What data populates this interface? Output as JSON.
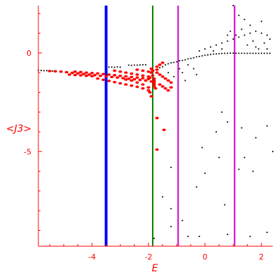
{
  "chart_data": {
    "type": "scatter",
    "xlabel": "E",
    "ylabel": "<J3>",
    "xlim": [
      -5.9,
      2.4
    ],
    "ylim": [
      -9.8,
      2.4
    ],
    "x_ticks": [
      -4,
      -2,
      0,
      2
    ],
    "y_ticks": [
      0,
      -5
    ],
    "grid": false,
    "colors": {
      "axes": "#ff0000",
      "black_series": "#000000",
      "red_series": "#ff0000"
    },
    "vertical_lines": [
      {
        "x": -3.5,
        "color": "#0000ff"
      },
      {
        "x": -1.85,
        "color": "#008000"
      },
      {
        "x": -0.95,
        "color": "#cc00cc"
      },
      {
        "x": 1.05,
        "color": "#cc00cc"
      }
    ],
    "series": [
      {
        "color": "#000000",
        "points": [
          [
            -5.9,
            -0.88
          ],
          [
            -5.8,
            -0.89
          ],
          [
            -5.7,
            -0.9
          ],
          [
            -5.6,
            -0.9
          ],
          [
            -5.5,
            -0.91
          ],
          [
            -5.4,
            -0.92
          ],
          [
            -3.4,
            -0.72
          ],
          [
            -3.3,
            -0.72
          ],
          [
            -3.2,
            -0.73
          ],
          [
            -3.1,
            -0.71
          ],
          [
            -3.0,
            -0.72
          ],
          [
            -2.7,
            -0.62
          ],
          [
            -2.6,
            -0.63
          ],
          [
            -2.5,
            -0.62
          ],
          [
            -2.4,
            -0.62
          ],
          [
            -2.3,
            -0.61
          ],
          [
            -2.2,
            -0.6
          ],
          [
            -2.1,
            -0.6
          ],
          [
            -1.6,
            -0.75
          ],
          [
            -1.5,
            -0.7
          ],
          [
            -1.4,
            -0.6
          ],
          [
            -1.3,
            -0.55
          ],
          [
            -1.2,
            -0.5
          ],
          [
            -1.1,
            -0.48
          ],
          [
            -1.0,
            -0.45
          ],
          [
            -0.9,
            -0.4
          ],
          [
            -0.8,
            -0.38
          ],
          [
            -0.7,
            -0.35
          ],
          [
            -0.6,
            -0.3
          ],
          [
            -0.5,
            -0.28
          ],
          [
            -0.4,
            -0.25
          ],
          [
            -0.3,
            -0.2
          ],
          [
            -0.2,
            -0.18
          ],
          [
            -0.1,
            -0.15
          ],
          [
            0.0,
            -0.12
          ],
          [
            0.1,
            -0.1
          ],
          [
            0.2,
            -0.08
          ],
          [
            0.3,
            -0.06
          ],
          [
            0.4,
            -0.05
          ],
          [
            0.5,
            -0.04
          ],
          [
            0.6,
            -0.03
          ],
          [
            0.7,
            -0.02
          ],
          [
            0.8,
            -0.02
          ],
          [
            0.9,
            -0.01
          ],
          [
            1.0,
            -0.01
          ],
          [
            1.1,
            -0.02
          ],
          [
            1.2,
            -0.02
          ],
          [
            1.3,
            -0.02
          ],
          [
            1.4,
            -0.02
          ],
          [
            1.5,
            -0.02
          ],
          [
            1.6,
            -0.02
          ],
          [
            1.7,
            -0.02
          ],
          [
            1.8,
            -0.02
          ],
          [
            1.9,
            -0.02
          ],
          [
            2.0,
            -0.02
          ],
          [
            2.1,
            -0.02
          ],
          [
            2.2,
            -0.02
          ],
          [
            2.3,
            -0.02
          ],
          [
            -0.2,
            0.1
          ],
          [
            0.0,
            0.2
          ],
          [
            0.2,
            0.3
          ],
          [
            0.4,
            0.4
          ],
          [
            0.6,
            0.5
          ],
          [
            0.8,
            0.6
          ],
          [
            1.0,
            0.7
          ],
          [
            1.2,
            0.8
          ],
          [
            1.4,
            0.9
          ],
          [
            1.6,
            1.0
          ],
          [
            1.8,
            1.1
          ],
          [
            2.0,
            1.0
          ],
          [
            2.2,
            0.9
          ],
          [
            1.5,
            0.4
          ],
          [
            1.7,
            0.6
          ],
          [
            1.9,
            0.2
          ],
          [
            2.1,
            0.5
          ],
          [
            2.3,
            0.7
          ],
          [
            1.3,
            1.2
          ],
          [
            1.1,
            0.9
          ],
          [
            0.9,
            1.1
          ],
          [
            1.6,
            1.4
          ],
          [
            2.0,
            1.6
          ],
          [
            1.4,
            1.7
          ],
          [
            1.2,
            1.9
          ],
          [
            0.8,
            0.9
          ],
          [
            0.6,
            0.2
          ],
          [
            0.3,
            0.1
          ],
          [
            1.8,
            0.3
          ],
          [
            2.2,
            0.2
          ],
          [
            1.0,
            2.4
          ],
          [
            -0.6,
            -0.6
          ],
          [
            -0.4,
            -0.8
          ],
          [
            -0.8,
            -1.0
          ],
          [
            -0.3,
            -1.1
          ],
          [
            -1.1,
            -1.2
          ],
          [
            -0.7,
            -1.4
          ],
          [
            -1.3,
            -1.0
          ],
          [
            -0.9,
            -0.8
          ],
          [
            0.6,
            -3.0
          ],
          [
            0.8,
            -3.5
          ],
          [
            1.3,
            -3.8
          ],
          [
            0.4,
            -4.0
          ],
          [
            1.8,
            -4.3
          ],
          [
            2.2,
            -3.7
          ],
          [
            -0.1,
            -4.8
          ],
          [
            0.5,
            -5.3
          ],
          [
            1.4,
            -5.3
          ],
          [
            2.4,
            -5.0
          ],
          [
            -1.2,
            -5.8
          ],
          [
            0.0,
            -6.1
          ],
          [
            1.2,
            -5.9
          ],
          [
            1.7,
            -6.0
          ],
          [
            -0.3,
            -6.8
          ],
          [
            -1.5,
            -7.3
          ],
          [
            0.7,
            -7.7
          ],
          [
            -1.2,
            -7.9
          ],
          [
            -0.8,
            -8.5
          ],
          [
            -1.2,
            -8.8
          ],
          [
            -0.6,
            -9.3
          ],
          [
            -1.8,
            -9.4
          ],
          [
            -0.2,
            -9.3
          ],
          [
            0.8,
            -9.2
          ],
          [
            2.2,
            -9.1
          ],
          [
            1.6,
            -9.3
          ]
        ]
      },
      {
        "color": "#ff0000",
        "points": [
          [
            -5.5,
            -0.92
          ],
          [
            -5.3,
            -0.93
          ],
          [
            -5.1,
            -0.95
          ],
          [
            -4.9,
            -0.98
          ],
          [
            -4.7,
            -1.01
          ],
          [
            -4.5,
            -1.04
          ],
          [
            -4.3,
            -1.07
          ],
          [
            -4.1,
            -1.1
          ],
          [
            -3.9,
            -1.13
          ],
          [
            -3.7,
            -1.16
          ],
          [
            -3.5,
            -1.19
          ],
          [
            -3.3,
            -1.22
          ],
          [
            -3.1,
            -1.25
          ],
          [
            -2.9,
            -1.28
          ],
          [
            -2.7,
            -1.31
          ],
          [
            -2.5,
            -1.34
          ],
          [
            -2.3,
            -1.37
          ],
          [
            -2.1,
            -1.4
          ],
          [
            -4.8,
            -1.1
          ],
          [
            -4.6,
            -1.12
          ],
          [
            -4.4,
            -1.14
          ],
          [
            -4.2,
            -1.16
          ],
          [
            -4.0,
            -1.18
          ],
          [
            -4.6,
            -0.95
          ],
          [
            -4.4,
            -0.97
          ],
          [
            -4.2,
            -1.0
          ],
          [
            -4.0,
            -1.02
          ],
          [
            -3.8,
            -1.04
          ],
          [
            -3.6,
            -1.07
          ],
          [
            -3.4,
            -1.1
          ],
          [
            -3.2,
            -1.13
          ],
          [
            -3.0,
            -1.16
          ],
          [
            -2.8,
            -1.19
          ],
          [
            -2.6,
            -1.22
          ],
          [
            -2.4,
            -1.25
          ],
          [
            -2.2,
            -1.28
          ],
          [
            -2.0,
            -1.32
          ],
          [
            -3.8,
            -1.3
          ],
          [
            -3.6,
            -1.36
          ],
          [
            -3.4,
            -1.42
          ],
          [
            -3.2,
            -1.48
          ],
          [
            -3.0,
            -1.54
          ],
          [
            -2.8,
            -1.6
          ],
          [
            -2.6,
            -1.66
          ],
          [
            -2.4,
            -1.72
          ],
          [
            -2.2,
            -1.8
          ],
          [
            -2.0,
            -1.9
          ],
          [
            -1.95,
            -2.0
          ],
          [
            -1.9,
            -2.2
          ],
          [
            -3.2,
            -0.9
          ],
          [
            -3.0,
            -0.95
          ],
          [
            -2.8,
            -1.0
          ],
          [
            -2.6,
            -1.05
          ],
          [
            -2.4,
            -1.1
          ],
          [
            -2.2,
            -1.15
          ],
          [
            -2.0,
            -1.2
          ],
          [
            -2.8,
            -1.35
          ],
          [
            -2.6,
            -1.4
          ],
          [
            -2.4,
            -1.5
          ],
          [
            -2.2,
            -1.6
          ],
          [
            -2.0,
            -1.75
          ],
          [
            -2.4,
            -0.85
          ],
          [
            -2.2,
            -0.9
          ],
          [
            -2.0,
            -0.95
          ],
          [
            -1.9,
            -1.0
          ],
          [
            -1.8,
            -1.3
          ],
          [
            -1.8,
            -1.4
          ],
          [
            -1.8,
            -1.5
          ],
          [
            -1.8,
            -1.6
          ],
          [
            -1.8,
            -1.7
          ],
          [
            -1.75,
            -1.8
          ],
          [
            -1.7,
            -1.0
          ],
          [
            -1.6,
            -1.1
          ],
          [
            -1.5,
            -1.2
          ],
          [
            -1.4,
            -1.3
          ],
          [
            -1.3,
            -1.4
          ],
          [
            -1.2,
            -1.5
          ],
          [
            -1.6,
            -1.6
          ],
          [
            -1.5,
            -1.7
          ],
          [
            -1.4,
            -1.8
          ],
          [
            -1.3,
            -1.9
          ],
          [
            -1.2,
            -1.75
          ],
          [
            -1.7,
            -0.7
          ],
          [
            -1.6,
            -0.6
          ],
          [
            -1.5,
            -0.5
          ],
          [
            -1.7,
            -0.85
          ],
          [
            -1.85,
            -0.9
          ],
          [
            -1.9,
            -0.8
          ],
          [
            -1.85,
            -1.15
          ],
          [
            -1.95,
            -1.25
          ],
          [
            -1.9,
            -1.45
          ],
          [
            -1.7,
            -3.3
          ],
          [
            -1.45,
            -3.9
          ],
          [
            -1.7,
            -4.9
          ]
        ]
      }
    ]
  }
}
